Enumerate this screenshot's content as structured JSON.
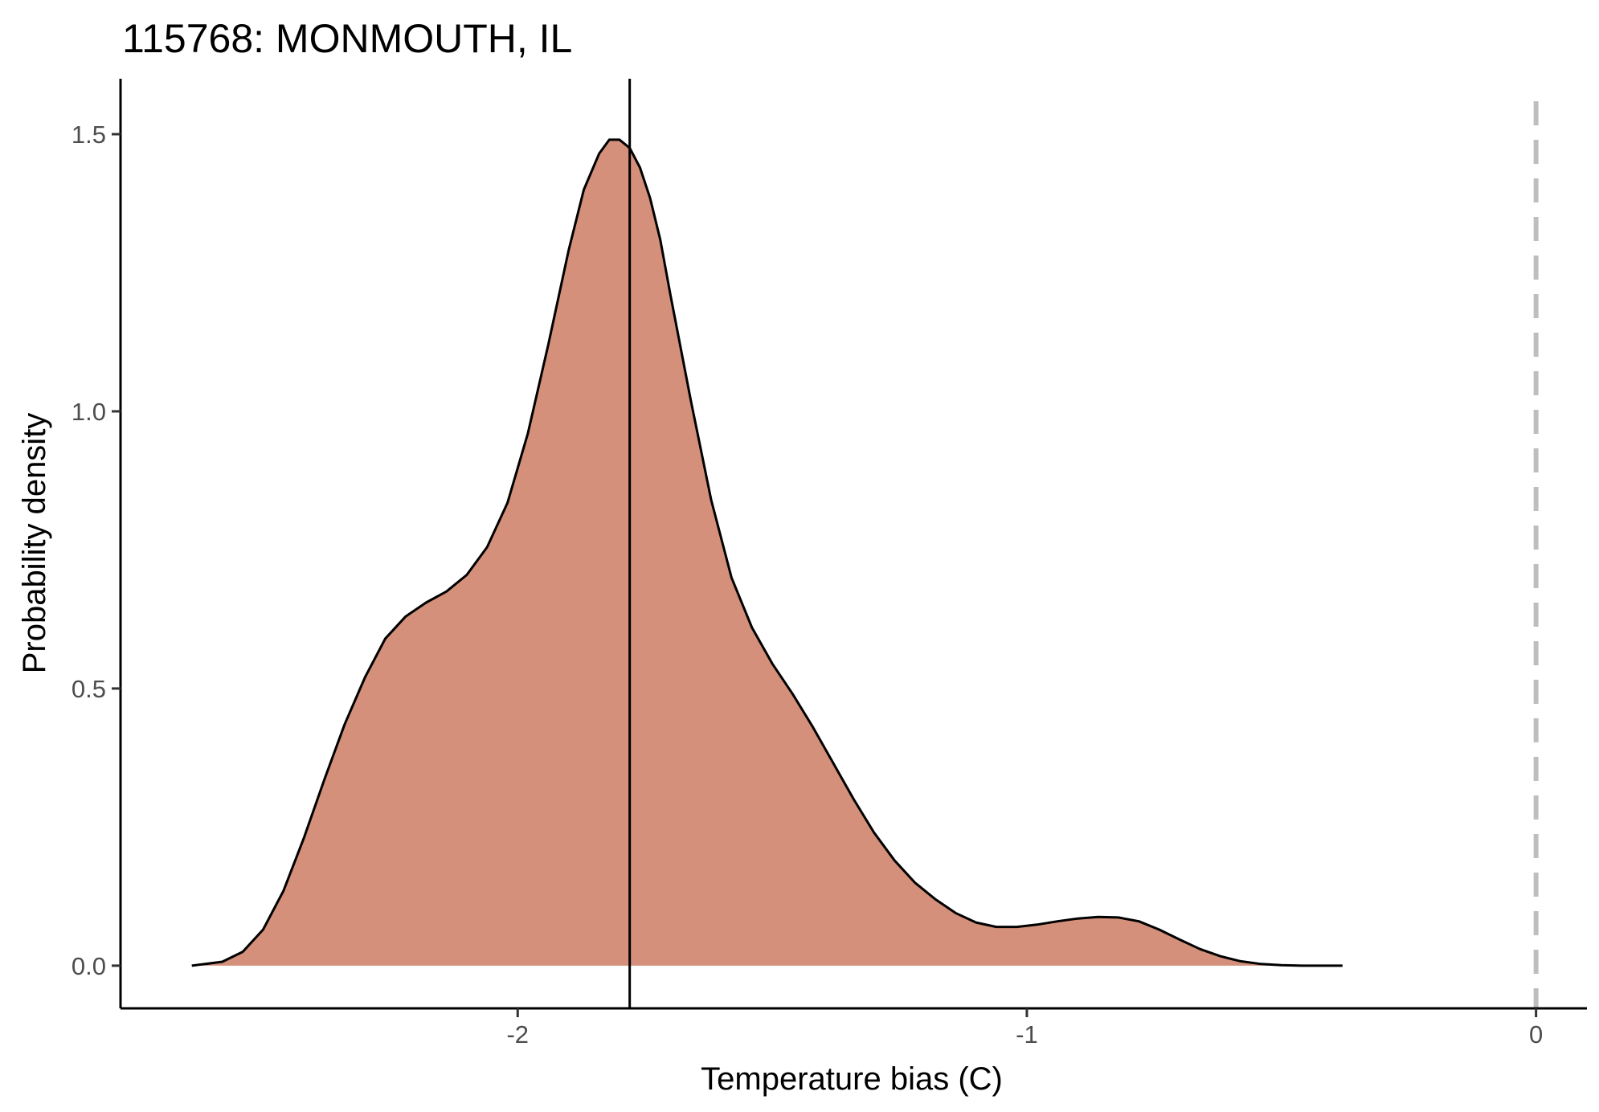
{
  "chart_data": {
    "type": "area",
    "title": "115768: MONMOUTH, IL",
    "xlabel": "Temperature bias (C)",
    "ylabel": "Probability density",
    "xlim": [
      -2.78,
      0.1
    ],
    "ylim": [
      -0.077,
      1.6
    ],
    "grid": false,
    "x_ticks": [
      -2,
      -1,
      0
    ],
    "x_tick_labels": [
      "-2",
      "-1",
      "0"
    ],
    "y_ticks": [
      0.0,
      0.5,
      1.0,
      1.5
    ],
    "y_tick_labels": [
      "0.0",
      "0.5",
      "1.0",
      "1.5"
    ],
    "fill_color": "#d4907a",
    "line_color": "#000000",
    "reference_color": "#bebebe",
    "series": [
      {
        "x": [
          -2.64,
          -2.58,
          -2.54,
          -2.5,
          -2.46,
          -2.42,
          -2.38,
          -2.34,
          -2.3,
          -2.26,
          -2.22,
          -2.18,
          -2.14,
          -2.1,
          -2.06,
          -2.02,
          -1.98,
          -1.94,
          -1.9,
          -1.87,
          -1.84,
          -1.82,
          -1.8,
          -1.78,
          -1.76,
          -1.74,
          -1.72,
          -1.7,
          -1.66,
          -1.62,
          -1.58,
          -1.54,
          -1.5,
          -1.46,
          -1.42,
          -1.38,
          -1.34,
          -1.3,
          -1.26,
          -1.22,
          -1.18,
          -1.14,
          -1.1,
          -1.06,
          -1.02,
          -0.98,
          -0.94,
          -0.9,
          -0.86,
          -0.82,
          -0.78,
          -0.74,
          -0.7,
          -0.66,
          -0.62,
          -0.58,
          -0.54,
          -0.5,
          -0.46,
          -0.42,
          -0.38
        ],
        "y": [
          0.0,
          0.007,
          0.025,
          0.065,
          0.135,
          0.23,
          0.335,
          0.435,
          0.52,
          0.59,
          0.63,
          0.655,
          0.675,
          0.705,
          0.755,
          0.835,
          0.96,
          1.12,
          1.29,
          1.4,
          1.465,
          1.49,
          1.49,
          1.475,
          1.44,
          1.385,
          1.31,
          1.21,
          1.02,
          0.84,
          0.7,
          0.61,
          0.545,
          0.49,
          0.43,
          0.365,
          0.3,
          0.24,
          0.19,
          0.15,
          0.12,
          0.095,
          0.078,
          0.07,
          0.07,
          0.074,
          0.08,
          0.085,
          0.088,
          0.087,
          0.08,
          0.065,
          0.047,
          0.03,
          0.017,
          0.008,
          0.003,
          0.001,
          0.0,
          0.0,
          0.0
        ]
      }
    ],
    "vertical_line": {
      "x": -1.78
    },
    "reference_line": {
      "x": 0
    }
  }
}
